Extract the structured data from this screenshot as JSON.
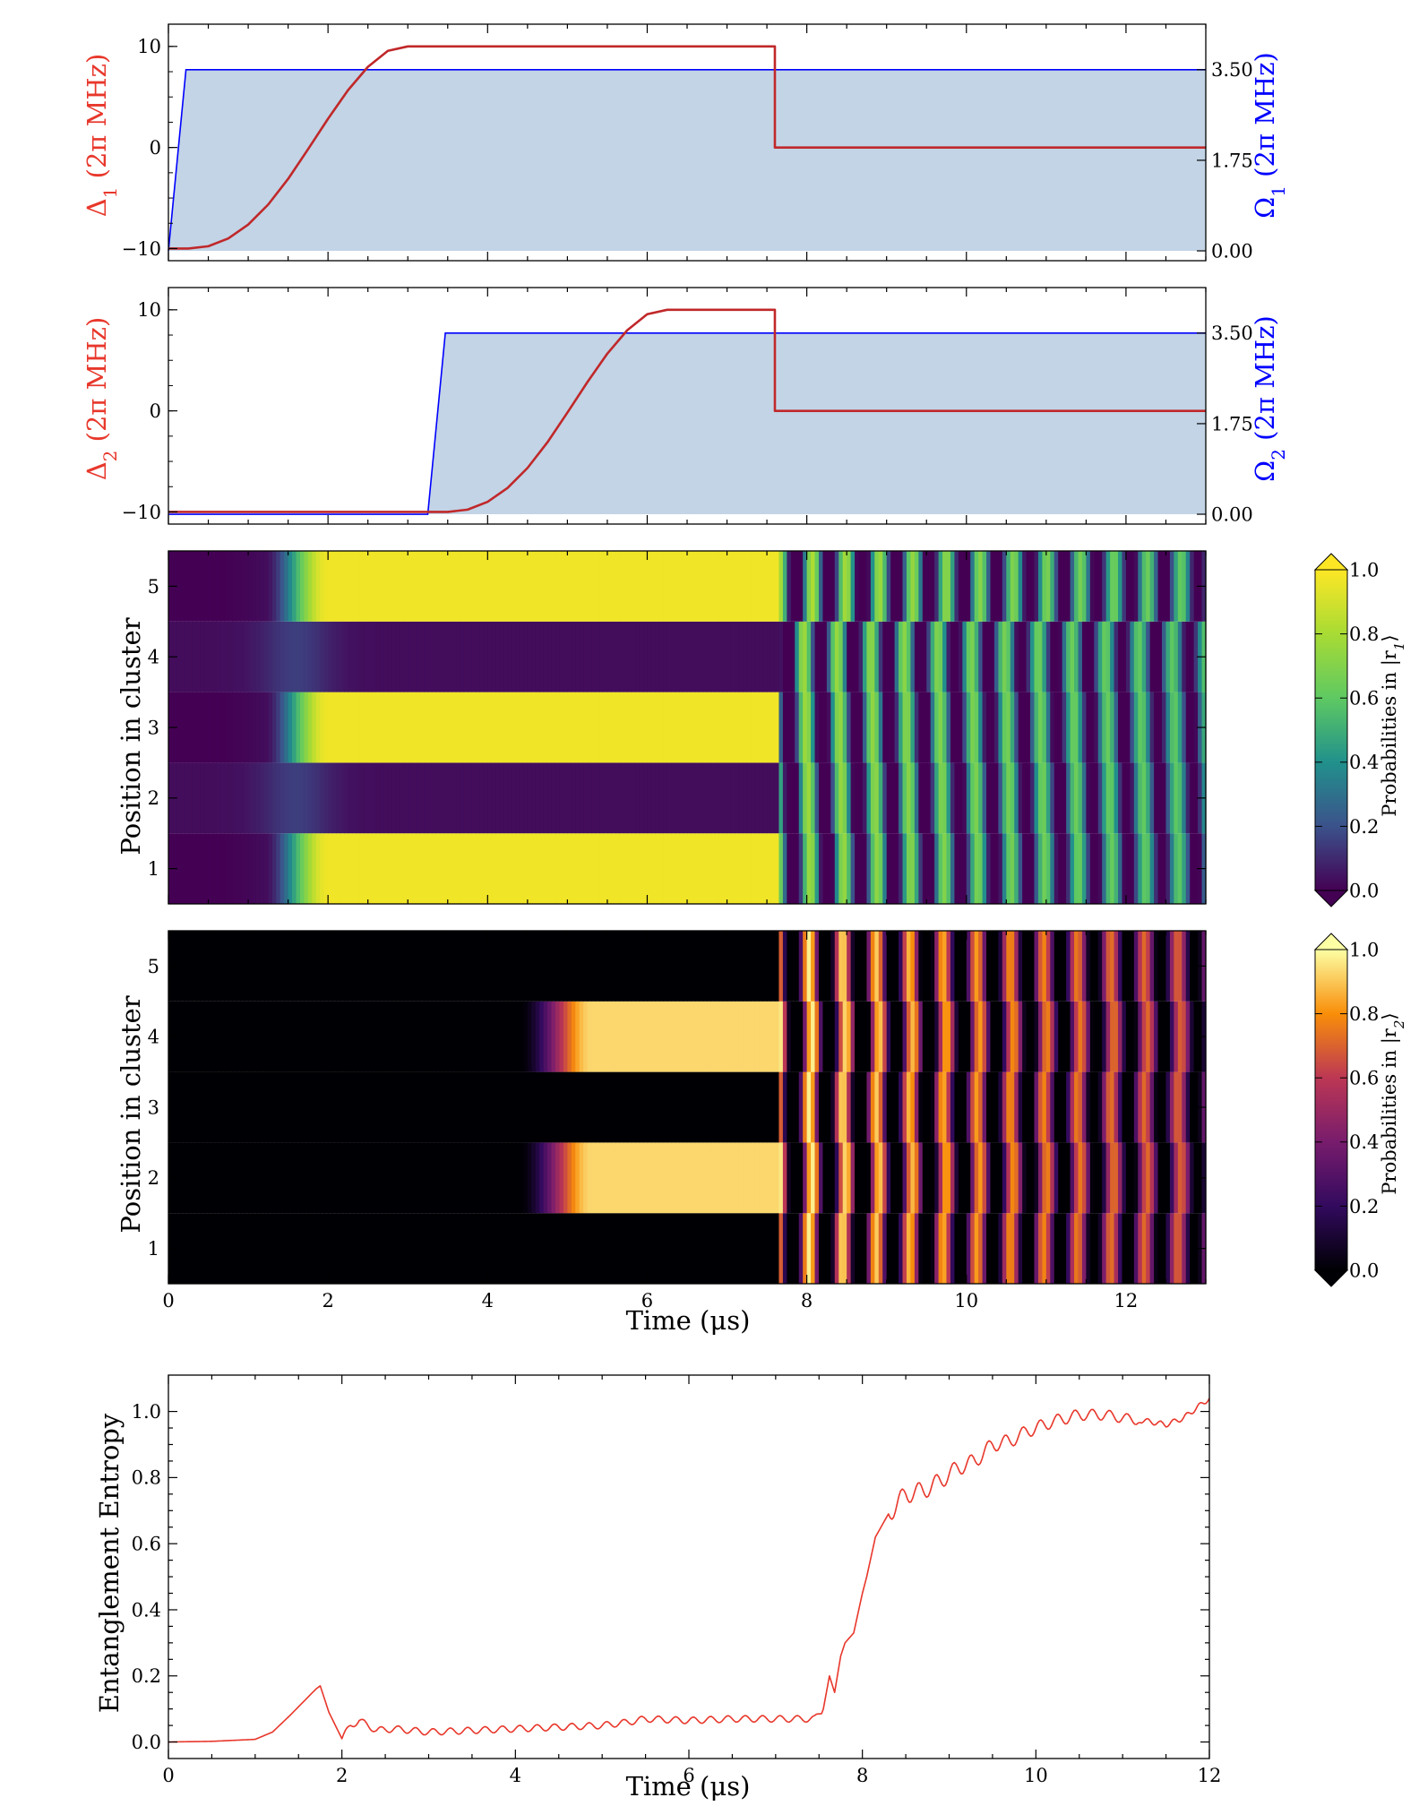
{
  "chart_data": [
    {
      "type": "line",
      "panel": "detuning-rabi-1",
      "ylabel_left_sym": "Δ",
      "ylabel_left_sub": "1",
      "ylabel_left_unit": " (2π MHz)",
      "ylabel_right_sym": "Ω",
      "ylabel_right_sub": "1",
      "ylabel_right_unit": " (2π MHz)",
      "xlim": [
        0,
        13
      ],
      "ylim_left": [
        -11.2,
        12.2
      ],
      "ylim_right": [
        -0.19,
        4.38
      ],
      "yticks_left": [
        -10,
        0,
        10
      ],
      "yticks_right": [
        "0.00",
        "1.75",
        "3.50"
      ],
      "left_color": "#e8372b",
      "right_color": "#0000ff",
      "fill_color": "#c2d4e6",
      "series": [
        {
          "axis": "left",
          "x": [
            0,
            0.25,
            0.5,
            0.75,
            1.0,
            1.25,
            1.5,
            1.75,
            2.0,
            2.25,
            2.5,
            2.75,
            3.0,
            3.25,
            3.5,
            4,
            5,
            6,
            7,
            7.6,
            7.6,
            8,
            10,
            13
          ],
          "y": [
            -10,
            -10,
            -9.77,
            -9.0,
            -7.63,
            -5.65,
            -3.11,
            -0.17,
            2.84,
            5.66,
            7.98,
            9.56,
            10,
            10,
            10,
            10,
            10,
            10,
            10,
            10,
            0,
            0,
            0,
            0
          ]
        },
        {
          "axis": "right",
          "x": [
            0,
            0.22,
            13
          ],
          "y": [
            0,
            3.5,
            3.5
          ]
        }
      ]
    },
    {
      "type": "line",
      "panel": "detuning-rabi-2",
      "ylabel_left_sym": "Δ",
      "ylabel_left_sub": "2",
      "ylabel_left_unit": " (2π MHz)",
      "ylabel_right_sym": "Ω",
      "ylabel_right_sub": "2",
      "ylabel_right_unit": " (2π MHz)",
      "xlim": [
        0,
        13
      ],
      "ylim_left": [
        -11.2,
        12.2
      ],
      "ylim_right": [
        -0.19,
        4.38
      ],
      "yticks_left": [
        -10,
        0,
        10
      ],
      "yticks_right": [
        "0.00",
        "1.75",
        "3.50"
      ],
      "left_color": "#e8372b",
      "right_color": "#0000ff",
      "fill_color": "#c2d4e6",
      "series": [
        {
          "axis": "left",
          "x": [
            0,
            3.5,
            3.75,
            4.0,
            4.25,
            4.5,
            4.75,
            5.0,
            5.25,
            5.5,
            5.75,
            6.0,
            6.25,
            6.5,
            7,
            7.6,
            7.6,
            8,
            10,
            13
          ],
          "y": [
            -10,
            -10,
            -9.77,
            -9.0,
            -7.63,
            -5.65,
            -3.11,
            -0.17,
            2.84,
            5.66,
            7.98,
            9.56,
            10,
            10,
            10,
            10,
            0,
            0,
            0,
            0
          ]
        },
        {
          "axis": "right",
          "x": [
            0,
            3.25,
            3.47,
            13
          ],
          "y": [
            0,
            0,
            3.5,
            3.5
          ]
        }
      ]
    },
    {
      "type": "heatmap",
      "panel": "r1-occupation",
      "ylabel": "Position in cluster",
      "xlim": [
        0,
        13
      ],
      "rows": [
        1,
        2,
        3,
        4,
        5
      ],
      "colormap": "viridis",
      "colorbar_label_pre": "Probabilities in |r",
      "colorbar_label_sub": "1",
      "colorbar_label_post": "⟩",
      "colorbar_ticks": [
        "0.0",
        "0.2",
        "0.4",
        "0.6",
        "0.8",
        "1.0"
      ],
      "quench_time": 7.65,
      "ramp_end": [
        1.95,
        1.95
      ],
      "odd_sites_plateau": 0.93,
      "even_sites_plateau": 0.0
    },
    {
      "type": "heatmap",
      "panel": "r2-occupation",
      "ylabel": "Position in cluster",
      "xlabel": "Time (μs)",
      "xlim": [
        0,
        13
      ],
      "xticks": [
        0,
        2,
        4,
        6,
        8,
        10,
        12
      ],
      "rows": [
        1,
        2,
        3,
        4,
        5
      ],
      "colormap": "inferno",
      "colorbar_label_pre": "Probabilities in |r",
      "colorbar_label_sub": "2",
      "colorbar_label_post": "⟩",
      "colorbar_ticks": [
        "0.0",
        "0.2",
        "0.4",
        "0.6",
        "0.8",
        "1.0"
      ],
      "quench_time": 7.65,
      "ramp_end": [
        5.2,
        5.2
      ],
      "even_sites_plateau": 0.93,
      "odd_sites_plateau": 0.0
    },
    {
      "type": "line",
      "panel": "entanglement-entropy",
      "ylabel": "Entanglement Entropy",
      "xlabel": "Time (μs)",
      "xlim": [
        0,
        12
      ],
      "ylim": [
        -0.05,
        1.11
      ],
      "xticks": [
        0,
        2,
        4,
        6,
        8,
        10,
        12
      ],
      "yticks": [
        "0.0",
        "0.2",
        "0.4",
        "0.6",
        "0.8",
        "1.0"
      ],
      "color": "#e8372b",
      "x": [
        0,
        0.5,
        1.0,
        1.2,
        1.4,
        1.55,
        1.7,
        1.75,
        1.85,
        2.0,
        2.1,
        2.2,
        2.4,
        2.6,
        3.0,
        3.5,
        4.0,
        4.5,
        5.0,
        5.3,
        5.5,
        6.0,
        6.5,
        7.0,
        7.45,
        7.55,
        7.62,
        7.68,
        7.75,
        7.8,
        7.9,
        8.0,
        8.05,
        8.15,
        8.3,
        8.5,
        8.7,
        8.9,
        9.1,
        9.3,
        9.5,
        9.7,
        9.9,
        10.2,
        10.5,
        10.8,
        11.0,
        11.3,
        11.5,
        11.7,
        12.0
      ],
      "y": [
        0.0,
        0.002,
        0.008,
        0.03,
        0.08,
        0.12,
        0.16,
        0.17,
        0.09,
        0.01,
        0.05,
        0.065,
        0.035,
        0.04,
        0.03,
        0.035,
        0.04,
        0.045,
        0.05,
        0.06,
        0.07,
        0.065,
        0.07,
        0.07,
        0.07,
        0.1,
        0.2,
        0.15,
        0.26,
        0.3,
        0.33,
        0.45,
        0.5,
        0.62,
        0.69,
        0.75,
        0.76,
        0.79,
        0.83,
        0.85,
        0.9,
        0.91,
        0.94,
        0.97,
        0.99,
        0.99,
        0.98,
        0.97,
        0.96,
        0.98,
        1.04
      ]
    }
  ]
}
